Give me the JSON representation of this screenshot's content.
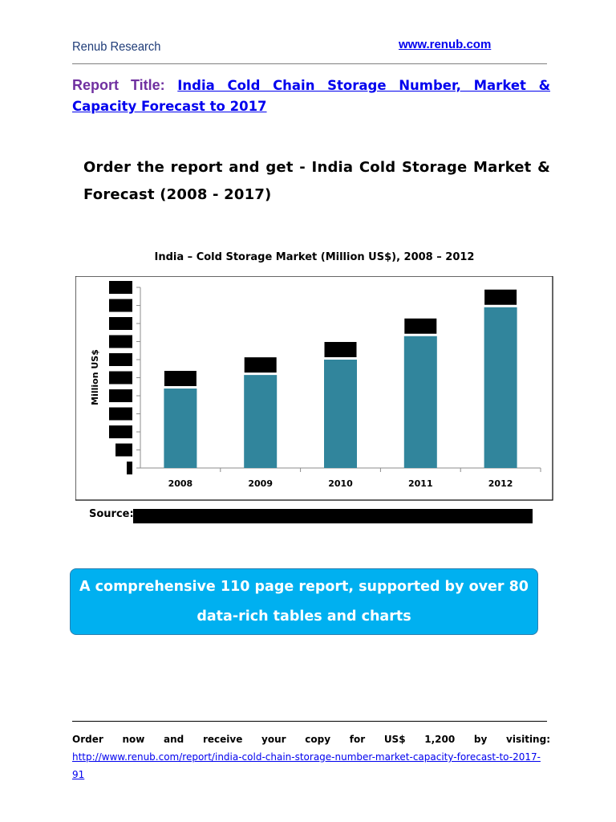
{
  "header": {
    "brand": "Renub Research",
    "site_link": "www.renub.com"
  },
  "report": {
    "label": "Report Title:",
    "title": "India Cold Chain Storage Number, Market & Capacity Forecast to 2017"
  },
  "order_heading": "Order the report and get - India Cold Storage Market & Forecast (2008 - 2017)",
  "chart_data": {
    "type": "bar",
    "title": "India – Cold Storage Market (Million US$), 2008 – 2012",
    "ylabel": "Million US$",
    "xlabel": "",
    "categories": [
      "2008",
      "2009",
      "2010",
      "2011",
      "2012"
    ],
    "values": [
      44,
      51.5,
      60,
      73,
      89
    ],
    "ylim": [
      0,
      100
    ],
    "y_tick_count": 11,
    "y_tick_labels_redacted": true,
    "data_labels_redacted": true,
    "grid": false,
    "bar_color": "#31859c"
  },
  "source": {
    "label": "Source:",
    "redacted": true
  },
  "banner": {
    "line1": "A comprehensive 110 page report, supported by over 80",
    "line2": "data-rich tables and charts",
    "color": "#00b0f0"
  },
  "footer": {
    "text": "Order now and receive your copy for US$ 1,200 by visiting:",
    "link": "http://www.renub.com/report/india-cold-chain-storage-number-market-capacity-forecast-to-2017-91"
  }
}
